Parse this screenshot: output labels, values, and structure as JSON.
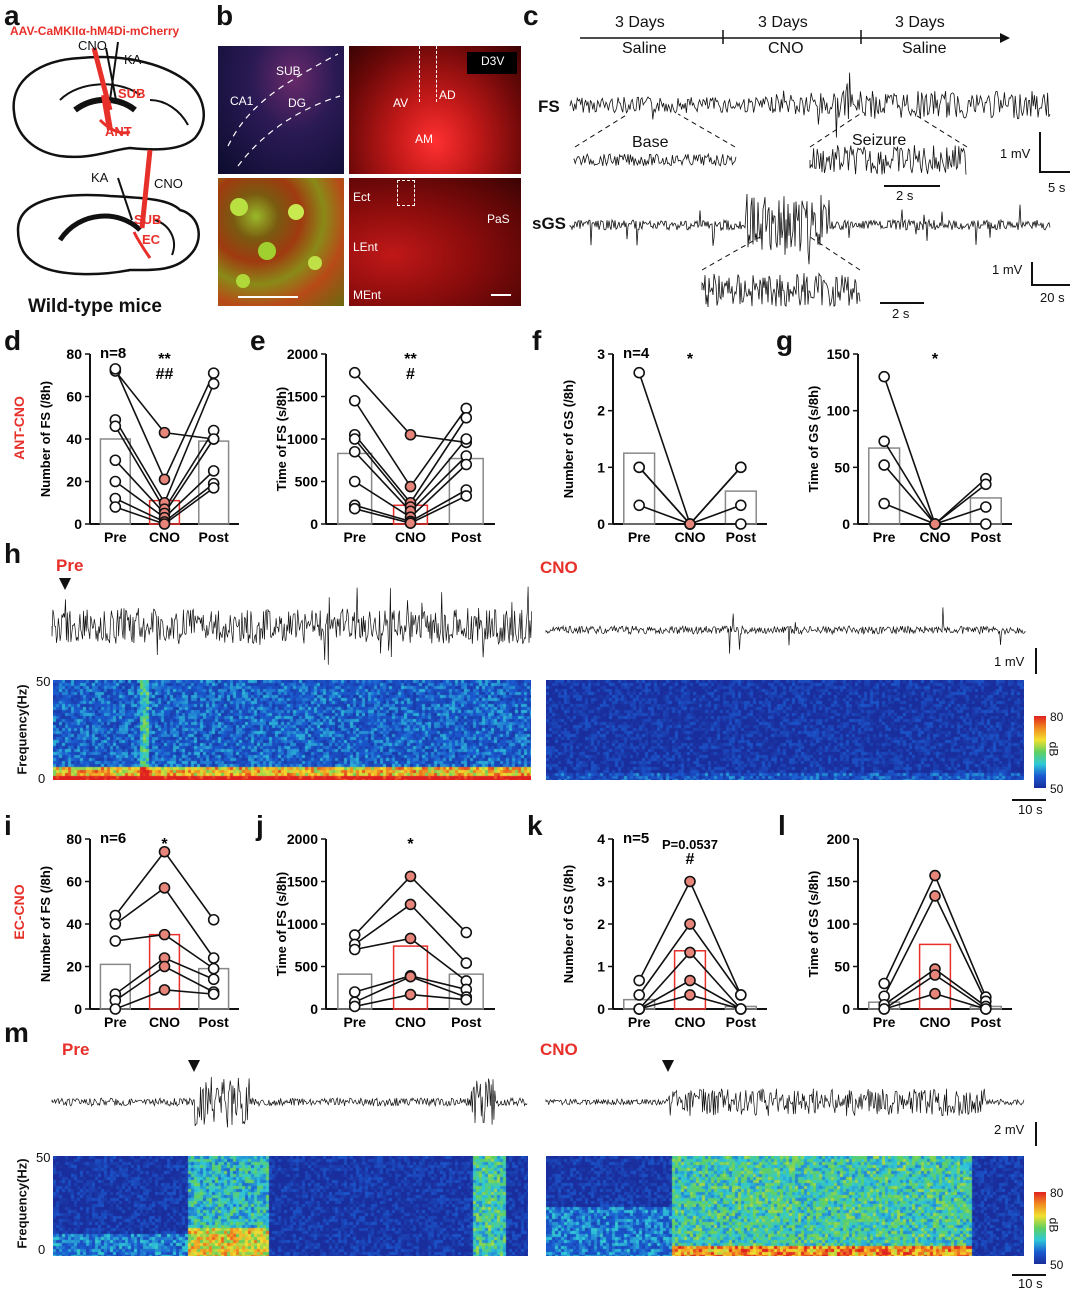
{
  "panel_letters": {
    "a": "a",
    "b": "b",
    "c": "c",
    "d": "d",
    "e": "e",
    "f": "f",
    "g": "g",
    "h": "h",
    "i": "i",
    "j": "j",
    "k": "k",
    "l": "l",
    "m": "m"
  },
  "panel_a": {
    "virus": "AAV-CaMKIIα-hM4Di-mCherry",
    "top": {
      "cno": "CNO",
      "ka": "KA",
      "sub": "SUB",
      "ant": "ANT"
    },
    "bottom": {
      "ka": "KA",
      "cno": "CNO",
      "sub": "SUB",
      "ec": "EC"
    },
    "caption": "Wild-type mice"
  },
  "panel_b": {
    "tl": {
      "sub": "SUB",
      "ca1": "CA1",
      "dg": "DG"
    },
    "tr": {
      "d3v": "D3V",
      "av": "AV",
      "ad": "AD",
      "am": "AM"
    },
    "br": {
      "ect": "Ect",
      "pas": "PaS",
      "lent": "LEnt",
      "ment": "MEnt"
    }
  },
  "panel_c": {
    "timeline": [
      {
        "top": "3 Days",
        "bottom": "Saline"
      },
      {
        "top": "3 Days",
        "bottom": "CNO"
      },
      {
        "top": "3 Days",
        "bottom": "Saline"
      }
    ],
    "fs_label": "FS",
    "base_label": "Base",
    "seizure_label": "Seizure",
    "sgs_label": "sGS",
    "scale1_v": "1 mV",
    "scale1_t": "5 s",
    "zoom1_t": "2 s",
    "scale2_v": "1 mV",
    "scale2_t": "20 s",
    "zoom2_t": "2 s"
  },
  "group_labels": {
    "ant": "ANT-CNO",
    "ec": "EC-CNO"
  },
  "colors": {
    "accent_red": "#e8302b",
    "filled_point": "#e8857a",
    "spectrogram_low": "#1a2d9c",
    "spectrogram_high": "#e02020"
  },
  "chart_data": [
    {
      "id": "d",
      "type": "bar",
      "ylabel": "Number of FS (/8h)",
      "categories": [
        "Pre",
        "CNO",
        "Post"
      ],
      "ylim": [
        0,
        80
      ],
      "yticks": [
        0,
        20,
        40,
        60,
        80
      ],
      "n_label": "n=8",
      "sig": [
        "**",
        "##"
      ],
      "bar_values": [
        40,
        11,
        39
      ],
      "series": [
        [
          72,
          43,
          40
        ],
        [
          73,
          21,
          71
        ],
        [
          49,
          10,
          66
        ],
        [
          46,
          7,
          44
        ],
        [
          30,
          5,
          40
        ],
        [
          20,
          3,
          25
        ],
        [
          12,
          1,
          19
        ],
        [
          8,
          0,
          17
        ]
      ]
    },
    {
      "id": "e",
      "type": "bar",
      "ylabel": "Time of FS (s/8h)",
      "categories": [
        "Pre",
        "CNO",
        "Post"
      ],
      "ylim": [
        0,
        2000
      ],
      "yticks": [
        0,
        500,
        1000,
        1500,
        2000
      ],
      "n_label": "",
      "sig": [
        "**",
        "#"
      ],
      "bar_values": [
        830,
        220,
        770
      ],
      "series": [
        [
          1780,
          1050,
          960
        ],
        [
          1450,
          440,
          1360
        ],
        [
          1050,
          250,
          1250
        ],
        [
          1000,
          200,
          1000
        ],
        [
          850,
          150,
          800
        ],
        [
          500,
          80,
          700
        ],
        [
          220,
          30,
          400
        ],
        [
          180,
          10,
          330
        ]
      ]
    },
    {
      "id": "f",
      "type": "bar",
      "ylabel": "Number of GS (/8h)",
      "categories": [
        "Pre",
        "CNO",
        "Post"
      ],
      "ylim": [
        0,
        3
      ],
      "yticks": [
        0,
        1,
        2,
        3
      ],
      "n_label": "n=4",
      "sig": [
        "*"
      ],
      "bar_values": [
        1.25,
        0,
        0.58
      ],
      "series": [
        [
          2.67,
          0,
          0
        ],
        [
          1,
          0,
          1
        ],
        [
          1,
          0,
          1
        ],
        [
          0.33,
          0,
          0.33
        ]
      ]
    },
    {
      "id": "g",
      "type": "bar",
      "ylabel": "Time of GS (s/8h)",
      "categories": [
        "Pre",
        "CNO",
        "Post"
      ],
      "ylim": [
        0,
        150
      ],
      "yticks": [
        0,
        50,
        100,
        150
      ],
      "n_label": "",
      "sig": [
        "*"
      ],
      "bar_values": [
        67,
        0,
        23
      ],
      "series": [
        [
          130,
          0,
          0
        ],
        [
          73,
          0,
          40
        ],
        [
          52,
          0,
          35
        ],
        [
          18,
          0,
          15
        ]
      ]
    },
    {
      "id": "i",
      "type": "bar",
      "ylabel": "Number of FS (/8h)",
      "categories": [
        "Pre",
        "CNO",
        "Post"
      ],
      "ylim": [
        0,
        80
      ],
      "yticks": [
        0,
        20,
        40,
        60,
        80
      ],
      "n_label": "n=6",
      "sig": [
        "*"
      ],
      "bar_values": [
        21,
        35,
        19
      ],
      "series": [
        [
          44,
          74,
          42
        ],
        [
          40,
          57,
          24
        ],
        [
          32,
          35,
          19
        ],
        [
          7,
          24,
          14
        ],
        [
          4,
          20,
          8
        ],
        [
          0,
          9,
          7
        ]
      ]
    },
    {
      "id": "j",
      "type": "bar",
      "ylabel": "Time of FS (s/8h)",
      "categories": [
        "Pre",
        "CNO",
        "Post"
      ],
      "ylim": [
        0,
        2000
      ],
      "yticks": [
        0,
        500,
        1000,
        1500,
        2000
      ],
      "n_label": "",
      "sig": [
        "*"
      ],
      "bar_values": [
        410,
        740,
        410
      ],
      "series": [
        [
          870,
          1560,
          900
        ],
        [
          760,
          1230,
          540
        ],
        [
          700,
          830,
          330
        ],
        [
          200,
          390,
          230
        ],
        [
          80,
          380,
          140
        ],
        [
          30,
          170,
          110
        ]
      ]
    },
    {
      "id": "k",
      "type": "bar",
      "ylabel": "Number of GS (/8h)",
      "categories": [
        "Pre",
        "CNO",
        "Post"
      ],
      "ylim": [
        0,
        4
      ],
      "yticks": [
        0,
        1,
        2,
        3,
        4
      ],
      "n_label": "n=5",
      "sig": [
        "P=0.0537",
        "#"
      ],
      "bar_values": [
        0.22,
        1.37,
        0.06
      ],
      "series": [
        [
          0.67,
          3,
          0.33
        ],
        [
          0.33,
          2,
          0.33
        ],
        [
          0,
          1.33,
          0
        ],
        [
          0,
          0.67,
          0
        ],
        [
          0,
          0.33,
          0
        ]
      ]
    },
    {
      "id": "l",
      "type": "bar",
      "ylabel": "Time of GS (s/8h)",
      "categories": [
        "Pre",
        "CNO",
        "Post"
      ],
      "ylim": [
        0,
        200
      ],
      "yticks": [
        0,
        50,
        100,
        150,
        200
      ],
      "n_label": "",
      "sig": [],
      "bar_values": [
        8,
        76,
        3
      ],
      "series": [
        [
          30,
          157,
          14
        ],
        [
          15,
          133,
          9
        ],
        [
          5,
          47,
          3
        ],
        [
          0,
          40,
          0
        ],
        [
          0,
          18,
          0
        ]
      ]
    }
  ],
  "panel_h": {
    "pre": "Pre",
    "cno": "CNO",
    "scale_v": "1 mV",
    "ylabel": "Frequency(Hz)",
    "y_top": "50",
    "y_bottom": "0",
    "cbar_top": "80",
    "cbar_bottom": "50",
    "cbar_unit": "dB",
    "scale_t": "10 s"
  },
  "panel_m": {
    "pre": "Pre",
    "cno": "CNO",
    "scale_v": "2 mV",
    "ylabel": "Frequency(Hz)",
    "y_top": "50",
    "y_bottom": "0",
    "cbar_top": "80",
    "cbar_bottom": "50",
    "cbar_unit": "dB",
    "scale_t": "10 s"
  }
}
